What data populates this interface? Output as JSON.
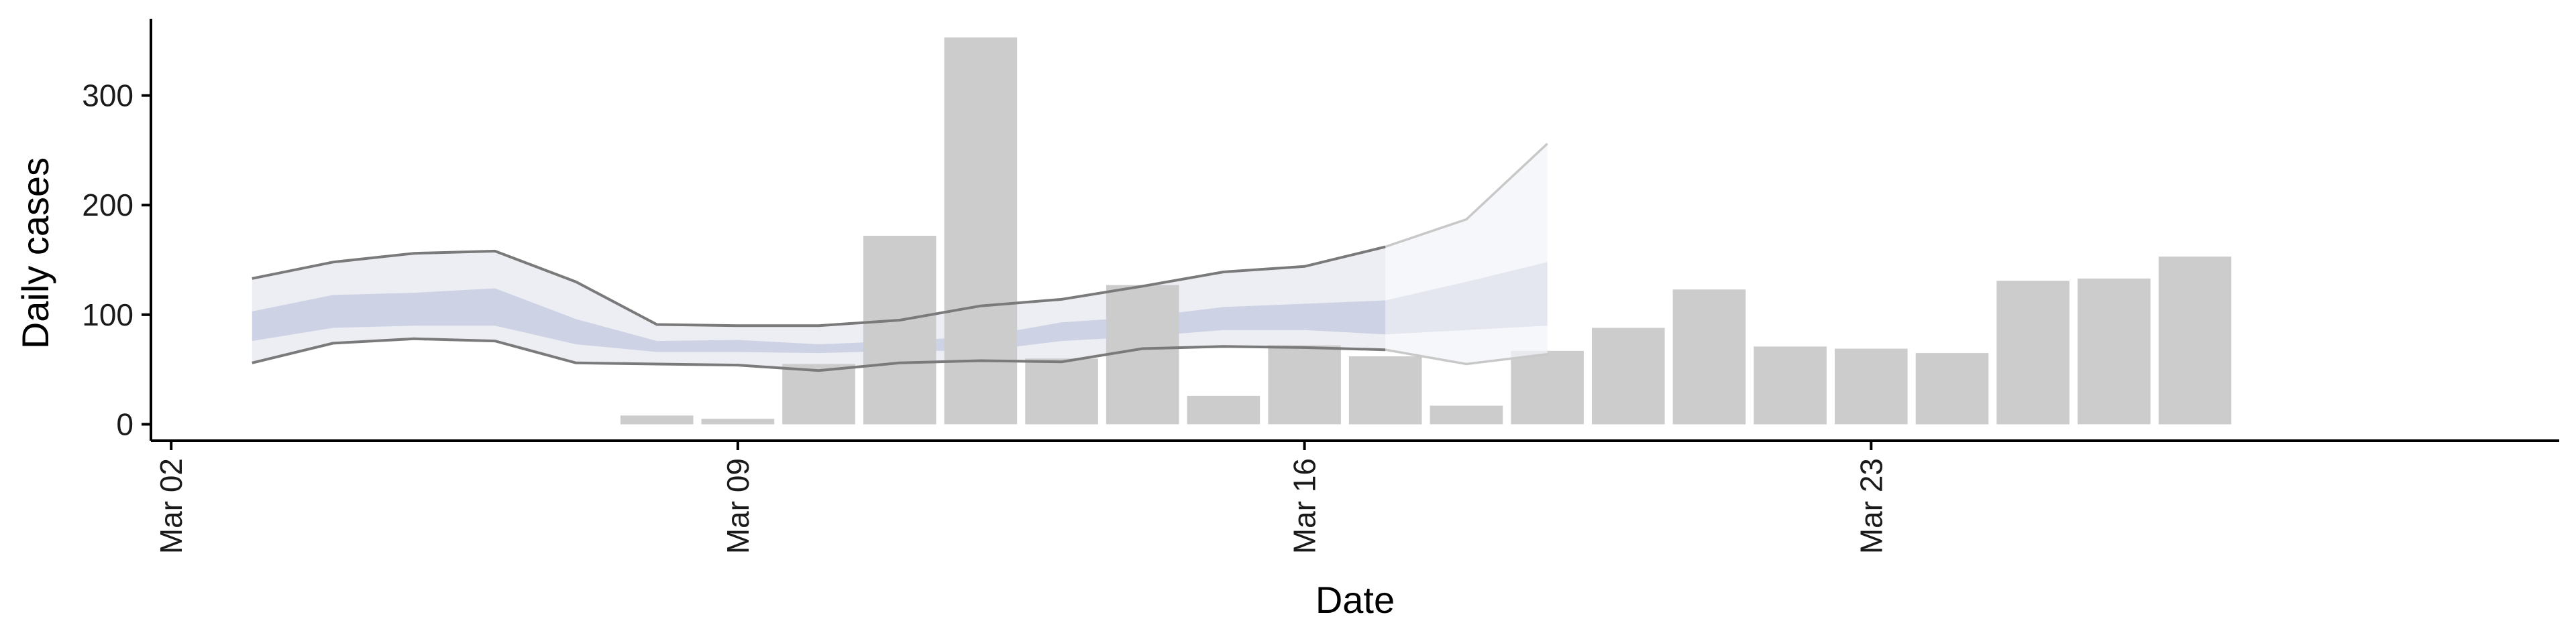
{
  "chart_data": {
    "type": "bar",
    "title": "",
    "xlabel": "Date",
    "ylabel": "Daily cases",
    "x_axis_kind": "date",
    "xlim": [
      "2020-03-01T18:00",
      "2020-03-31T12:00"
    ],
    "ylim": [
      -15,
      370
    ],
    "y_ticks": [
      0,
      100,
      200,
      300
    ],
    "x_ticks": [
      {
        "date": "2020-03-02",
        "label": "Mar 02"
      },
      {
        "date": "2020-03-09",
        "label": "Mar 09"
      },
      {
        "date": "2020-03-16",
        "label": "Mar 16"
      },
      {
        "date": "2020-03-23",
        "label": "Mar 23"
      }
    ],
    "grid": false,
    "legend": "none",
    "colors": {
      "bars": "#cccccc",
      "outer_band": "#ebedf3",
      "inner_band": "#c8cde0",
      "band_lines": "#7a7a7a",
      "forecast_band": "#f3f4f8",
      "forecast_inner_band": "#dfe1ec",
      "forecast_lines": "#c8c8c8",
      "axis": "#000000"
    },
    "bars": [
      {
        "date": "2020-03-08",
        "value": 8
      },
      {
        "date": "2020-03-09",
        "value": 5
      },
      {
        "date": "2020-03-10",
        "value": 55
      },
      {
        "date": "2020-03-11",
        "value": 172
      },
      {
        "date": "2020-03-12",
        "value": 353
      },
      {
        "date": "2020-03-13",
        "value": 60
      },
      {
        "date": "2020-03-14",
        "value": 127
      },
      {
        "date": "2020-03-15",
        "value": 26
      },
      {
        "date": "2020-03-16",
        "value": 72
      },
      {
        "date": "2020-03-17",
        "value": 62
      },
      {
        "date": "2020-03-18",
        "value": 17
      },
      {
        "date": "2020-03-19",
        "value": 67
      },
      {
        "date": "2020-03-20",
        "value": 88
      },
      {
        "date": "2020-03-21",
        "value": 123
      },
      {
        "date": "2020-03-22",
        "value": 71
      },
      {
        "date": "2020-03-23",
        "value": 69
      },
      {
        "date": "2020-03-24",
        "value": 65
      },
      {
        "date": "2020-03-25",
        "value": 131
      },
      {
        "date": "2020-03-26",
        "value": 133
      },
      {
        "date": "2020-03-27",
        "value": 153
      }
    ],
    "estimate": {
      "dates": [
        "2020-03-03",
        "2020-03-04",
        "2020-03-05",
        "2020-03-06",
        "2020-03-07",
        "2020-03-08",
        "2020-03-09",
        "2020-03-10",
        "2020-03-11",
        "2020-03-12",
        "2020-03-13",
        "2020-03-14",
        "2020-03-15",
        "2020-03-16",
        "2020-03-17"
      ],
      "outer_upper": [
        133,
        148,
        156,
        158,
        130,
        91,
        90,
        90,
        95,
        108,
        114,
        126,
        139,
        144,
        162
      ],
      "inner_upper": [
        103,
        118,
        120,
        124,
        96,
        76,
        77,
        73,
        76,
        80,
        93,
        98,
        107,
        110,
        113
      ],
      "inner_lower": [
        76,
        88,
        90,
        90,
        73,
        66,
        66,
        65,
        67,
        67,
        76,
        80,
        86,
        86,
        82
      ],
      "outer_lower": [
        56,
        74,
        78,
        76,
        56,
        55,
        54,
        49,
        56,
        58,
        57,
        69,
        71,
        70,
        68
      ]
    },
    "forecast": {
      "dates": [
        "2020-03-17",
        "2020-03-18",
        "2020-03-19"
      ],
      "outer_upper": [
        162,
        187,
        256
      ],
      "inner_upper": [
        113,
        130,
        148
      ],
      "inner_lower": [
        82,
        86,
        90
      ],
      "outer_lower": [
        68,
        55,
        64
      ]
    }
  }
}
